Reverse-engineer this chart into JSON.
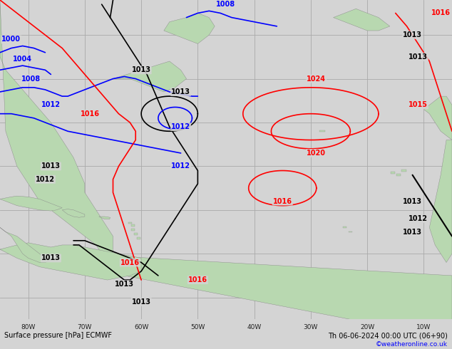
{
  "title_left": "Surface pressure [hPa] ECMWF",
  "title_right": "Th 06-06-2024 00:00 UTC (06+90)",
  "copyright": "©weatheronline.co.uk",
  "bg_ocean": "#d4d4d4",
  "land_color": "#b8d8b0",
  "grid_color": "#aaaaaa",
  "bottom_bar_color": "#c8c8c8",
  "figsize": [
    6.34,
    4.9
  ],
  "dpi": 100,
  "xlim": [
    -85,
    -5
  ],
  "ylim": [
    -5,
    68
  ],
  "lon_ticks": [
    -80,
    -70,
    -60,
    -50,
    -40,
    -30,
    -20,
    -10
  ],
  "lon_labels": [
    "80W",
    "70W",
    "60W",
    "50W",
    "40W",
    "30W",
    "20W",
    "10W"
  ]
}
